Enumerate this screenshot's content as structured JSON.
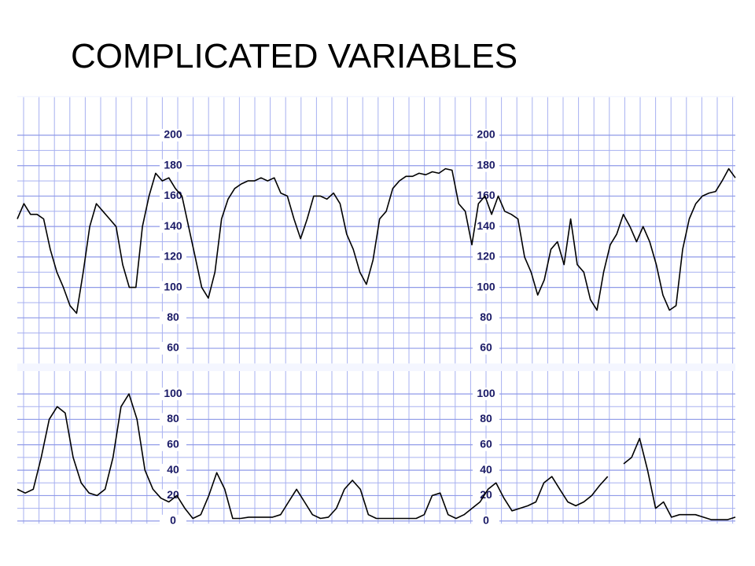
{
  "title": "COMPLICATED VARIABLES",
  "chart_data": [
    {
      "type": "line",
      "color": "#000000",
      "grid": true,
      "ylim": [
        50,
        225
      ],
      "yticks": [
        60,
        80,
        100,
        120,
        140,
        160,
        180,
        200
      ],
      "values": [
        145,
        155,
        148,
        148,
        145,
        125,
        110,
        100,
        88,
        83,
        110,
        140,
        155,
        150,
        145,
        140,
        115,
        100,
        100,
        140,
        160,
        175,
        170,
        172,
        165,
        160,
        140,
        120,
        100,
        93,
        110,
        145,
        158,
        165,
        168,
        170,
        170,
        172,
        170,
        172,
        162,
        160,
        145,
        132,
        145,
        160,
        160,
        158,
        162,
        155,
        135,
        125,
        110,
        102,
        118,
        145,
        150,
        165,
        170,
        173,
        173,
        175,
        174,
        176,
        175,
        178,
        177,
        155,
        150,
        128,
        155,
        160,
        148,
        160,
        150,
        148,
        145,
        120,
        110,
        95,
        105,
        125,
        130,
        115,
        145,
        115,
        110,
        92,
        85,
        110,
        128,
        135,
        148,
        140,
        130,
        140,
        130,
        115,
        95,
        85,
        88,
        125,
        145,
        155,
        160,
        162,
        163,
        170,
        178,
        172
      ]
    },
    {
      "type": "line",
      "color": "#000000",
      "grid": true,
      "ylim": [
        -2,
        118
      ],
      "yticks": [
        0,
        20,
        40,
        60,
        80,
        100
      ],
      "values": [
        25,
        22,
        25,
        50,
        80,
        90,
        85,
        50,
        30,
        22,
        20,
        25,
        50,
        90,
        100,
        80,
        40,
        25,
        18,
        15,
        20,
        10,
        2,
        5,
        20,
        38,
        25,
        2,
        2,
        3,
        3,
        3,
        3,
        5,
        15,
        25,
        15,
        5,
        2,
        3,
        10,
        25,
        32,
        25,
        5,
        2,
        2,
        2,
        2,
        2,
        2,
        5,
        20,
        22,
        5,
        2,
        5,
        10,
        15,
        25,
        30,
        18,
        8,
        10,
        12,
        15,
        30,
        35,
        25,
        15,
        12,
        15,
        20,
        28,
        35,
        null,
        45,
        50,
        65,
        40,
        10,
        15,
        3,
        5,
        5,
        5,
        3,
        1,
        1,
        1,
        3
      ]
    }
  ]
}
